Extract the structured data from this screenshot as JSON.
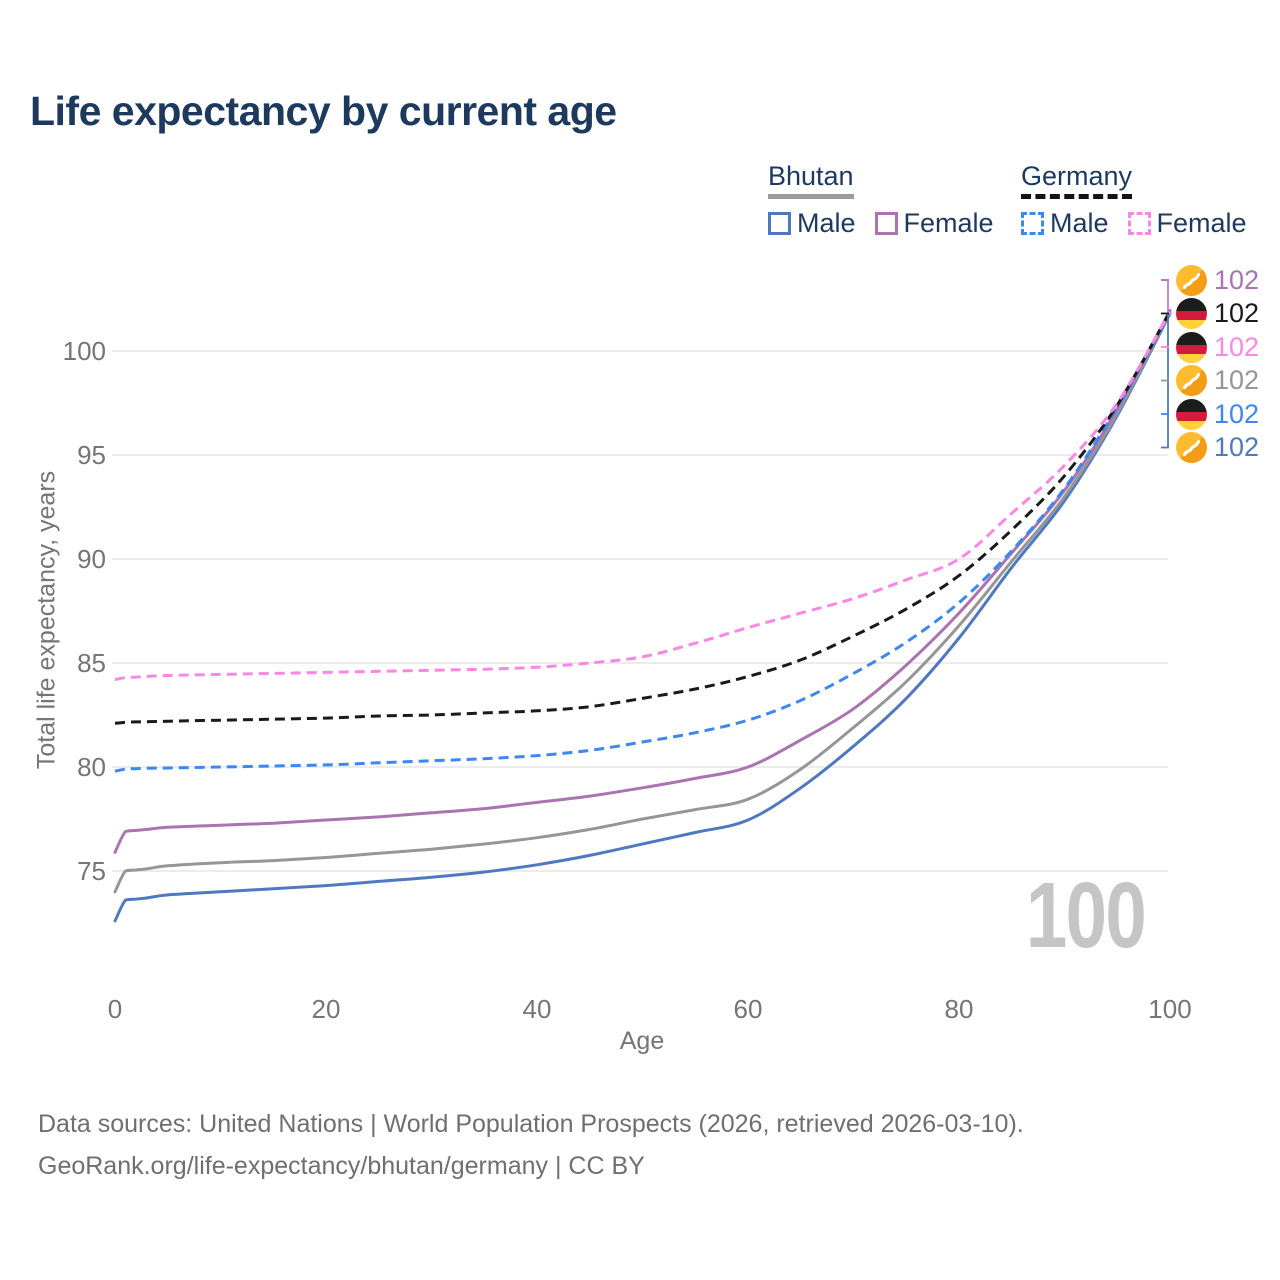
{
  "title": "Life expectancy by current age",
  "watermark_age": "100",
  "legend": {
    "groups": [
      {
        "country": "Bhutan",
        "line_style": "solid",
        "underline_color": "#9c9c9c",
        "items": [
          {
            "label": "Male",
            "color": "#4e79c0"
          },
          {
            "label": "Female",
            "color": "#ab74b0"
          }
        ]
      },
      {
        "country": "Germany",
        "line_style": "dashed",
        "underline_color": "#141414",
        "items": [
          {
            "label": "Male",
            "color": "#3d87f0"
          },
          {
            "label": "Female",
            "color": "#fb87e3"
          }
        ]
      }
    ]
  },
  "y_axis": {
    "title": "Total life expectancy, years",
    "ticks": [
      75,
      80,
      85,
      90,
      95,
      100
    ]
  },
  "x_axis": {
    "title": "Age",
    "ticks": [
      0,
      20,
      40,
      60,
      80,
      100
    ]
  },
  "end_labels": [
    {
      "series": "Bhutan Female",
      "flag": "bhutan",
      "value": "102",
      "color": "#ab74b0"
    },
    {
      "series": "Germany",
      "flag": "germany",
      "value": "102",
      "color": "#1a1a1a"
    },
    {
      "series": "Germany Female",
      "flag": "germany",
      "value": "102",
      "color": "#fb87e3"
    },
    {
      "series": "Bhutan",
      "flag": "bhutan",
      "value": "102",
      "color": "#969696"
    },
    {
      "series": "Germany Male",
      "flag": "germany",
      "value": "102",
      "color": "#3d87f0"
    },
    {
      "series": "Bhutan Male",
      "flag": "bhutan",
      "value": "102",
      "color": "#4e79c0"
    }
  ],
  "footer": {
    "line1": "Data sources: United Nations | World Population Prospects (2026, retrieved 2026-03-10).",
    "line2": "GeoRank.org/life-expectancy/bhutan/germany | CC BY"
  },
  "chart_data": {
    "type": "line",
    "title": "Life expectancy by current age",
    "xlabel": "Age",
    "ylabel": "Total life expectancy, years",
    "xlim": [
      0,
      100
    ],
    "ylim": [
      72,
      102.5
    ],
    "x_ticks": [
      0,
      20,
      40,
      60,
      80,
      100
    ],
    "y_ticks": [
      75,
      80,
      85,
      90,
      95,
      100
    ],
    "grid": "horizontal-only",
    "legend_position": "top-right",
    "current_age_indicator": 100,
    "end_value_label": "102",
    "ages": [
      0,
      1,
      2,
      3,
      5,
      10,
      15,
      20,
      25,
      30,
      35,
      40,
      45,
      50,
      55,
      60,
      65,
      70,
      75,
      80,
      85,
      90,
      95,
      100
    ],
    "series": [
      {
        "id": "bhutan-male",
        "name": "Bhutan Male",
        "country": "Bhutan",
        "sex": "Male",
        "color": "#4e79c0",
        "dash": false,
        "values": [
          72.6,
          73.6,
          73.65,
          73.7,
          73.85,
          74.0,
          74.15,
          74.3,
          74.5,
          74.7,
          74.95,
          75.3,
          75.75,
          76.3,
          76.85,
          77.45,
          79.0,
          81.0,
          83.3,
          86.2,
          89.6,
          92.8,
          96.9,
          101.8
        ]
      },
      {
        "id": "bhutan-total",
        "name": "Bhutan",
        "country": "Bhutan",
        "sex": "Total",
        "color": "#969696",
        "dash": false,
        "values": [
          74.0,
          75.0,
          75.05,
          75.1,
          75.25,
          75.4,
          75.5,
          75.65,
          75.85,
          76.05,
          76.3,
          76.6,
          77.0,
          77.5,
          77.95,
          78.45,
          79.9,
          81.9,
          84.1,
          86.8,
          89.9,
          93.0,
          97.0,
          101.85
        ]
      },
      {
        "id": "bhutan-female",
        "name": "Bhutan Female",
        "country": "Bhutan",
        "sex": "Female",
        "color": "#ab74b0",
        "dash": false,
        "values": [
          75.9,
          76.9,
          76.95,
          77.0,
          77.1,
          77.2,
          77.3,
          77.45,
          77.6,
          77.8,
          78.0,
          78.3,
          78.6,
          79.0,
          79.45,
          80.0,
          81.3,
          82.8,
          84.9,
          87.4,
          90.3,
          93.3,
          97.2,
          101.95
        ]
      },
      {
        "id": "germany-male",
        "name": "Germany Male",
        "country": "Germany",
        "sex": "Male",
        "color": "#3d87f0",
        "dash": true,
        "values": [
          79.8,
          79.9,
          79.92,
          79.94,
          79.95,
          80.0,
          80.05,
          80.1,
          80.2,
          80.3,
          80.4,
          80.55,
          80.8,
          81.2,
          81.65,
          82.25,
          83.2,
          84.5,
          86.0,
          87.9,
          90.4,
          93.4,
          97.3,
          101.8
        ]
      },
      {
        "id": "germany-total",
        "name": "Germany",
        "country": "Germany",
        "sex": "Total",
        "color": "#1a1a1a",
        "dash": true,
        "values": [
          82.1,
          82.15,
          82.17,
          82.18,
          82.2,
          82.25,
          82.3,
          82.35,
          82.45,
          82.5,
          82.6,
          82.7,
          82.9,
          83.3,
          83.75,
          84.35,
          85.15,
          86.3,
          87.6,
          89.2,
          91.4,
          94.0,
          97.4,
          101.9
        ]
      },
      {
        "id": "germany-female",
        "name": "Germany Female",
        "country": "Germany",
        "sex": "Female",
        "color": "#fb87e3",
        "dash": true,
        "values": [
          84.2,
          84.3,
          84.32,
          84.35,
          84.4,
          84.45,
          84.5,
          84.55,
          84.6,
          84.65,
          84.7,
          84.8,
          85.0,
          85.3,
          85.95,
          86.7,
          87.4,
          88.1,
          89.0,
          90.0,
          92.2,
          94.5,
          97.5,
          101.9
        ]
      }
    ]
  },
  "colors": {
    "title": "#1d3a5e",
    "axis_text": "#757575",
    "grid": "#e5e5e5",
    "watermark": "#c5c5c5",
    "footer_text": "#6f6f6f",
    "bracket_top": "#bb7fc9",
    "bracket_bottom": "#4e79c0"
  }
}
